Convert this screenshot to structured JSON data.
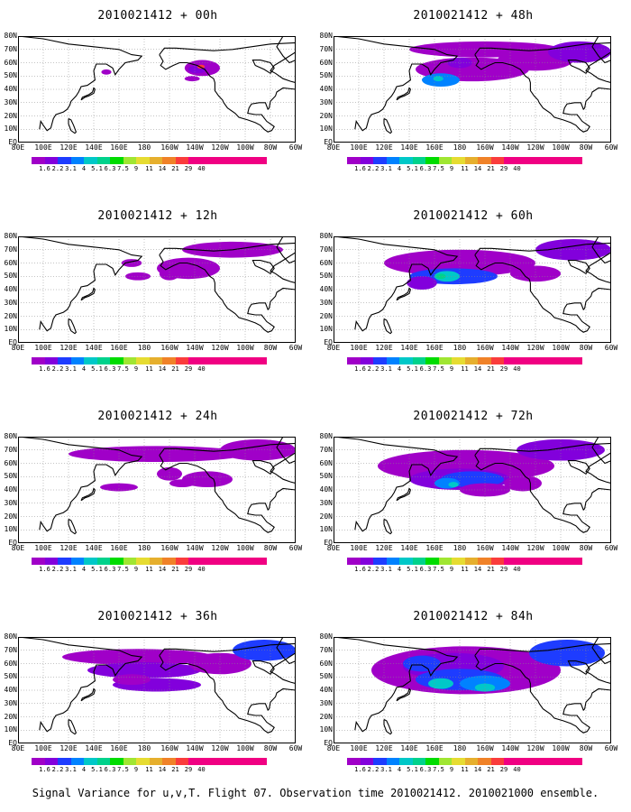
{
  "panels": [
    {
      "title": "2010021412 + 00h",
      "lead_hours": 0
    },
    {
      "title": "2010021412 + 48h",
      "lead_hours": 48
    },
    {
      "title": "2010021412 + 12h",
      "lead_hours": 12
    },
    {
      "title": "2010021412 + 60h",
      "lead_hours": 60
    },
    {
      "title": "2010021412 + 24h",
      "lead_hours": 24
    },
    {
      "title": "2010021412 + 72h",
      "lead_hours": 72
    },
    {
      "title": "2010021412 + 36h",
      "lead_hours": 36
    },
    {
      "title": "2010021412 + 84h",
      "lead_hours": 84
    }
  ],
  "axes": {
    "lat_labels": [
      "80N",
      "70N",
      "60N",
      "50N",
      "40N",
      "30N",
      "20N",
      "10N",
      "EQ"
    ],
    "lon_labels": [
      "80E",
      "100E",
      "120E",
      "140E",
      "160E",
      "180",
      "160W",
      "140W",
      "120W",
      "100W",
      "80W",
      "60W"
    ]
  },
  "legend": {
    "labels": [
      "1.6",
      "2.2",
      "3.1",
      "4",
      "5.1",
      "6.3",
      "7.5",
      "9",
      "11",
      "14",
      "21",
      "29",
      "40"
    ],
    "colors": [
      "#a000c8",
      "#8200dc",
      "#1e3cff",
      "#0082ff",
      "#00c8c8",
      "#00d28c",
      "#00dc00",
      "#a0e632",
      "#e6dc32",
      "#e6af2d",
      "#f08228",
      "#fa3c3c",
      "#f00082"
    ]
  },
  "footer": "Signal Variance for u,v,T. Flight 07. Observation time 2010021412. 2010021000 ensemble."
}
